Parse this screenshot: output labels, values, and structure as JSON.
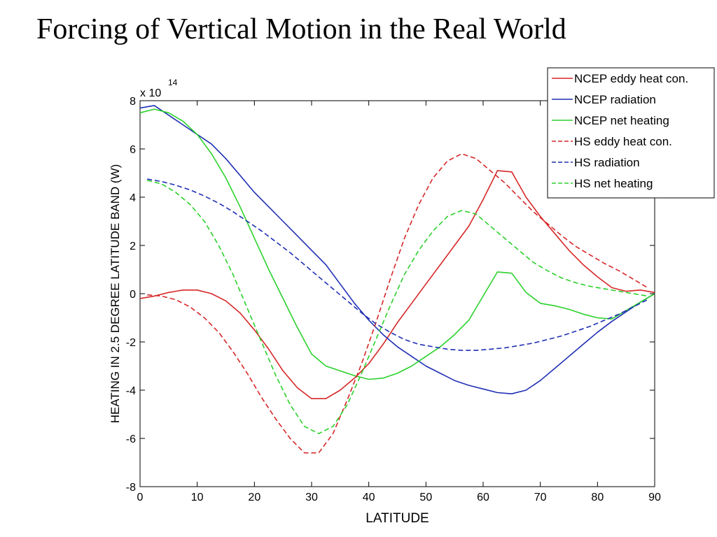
{
  "slide": {
    "title": "Forcing of Vertical Motion in the Real World"
  },
  "chart_data": {
    "type": "line",
    "xlabel": "LATITUDE",
    "ylabel": "HEATING IN 2.5 DEGREE LATITUDE BAND (W)",
    "exponent_label": {
      "base": "x 10",
      "power": "14"
    },
    "xlim": [
      0,
      90
    ],
    "ylim": [
      -8,
      8
    ],
    "x_ticks": [
      0,
      10,
      20,
      30,
      40,
      50,
      60,
      70,
      80,
      90
    ],
    "y_ticks": [
      -8,
      -6,
      -4,
      -2,
      0,
      2,
      4,
      6,
      8
    ],
    "grid": false,
    "legend_position": "top-right",
    "series": [
      {
        "name": "NCEP eddy heat con.",
        "color": "#d62728",
        "style": "solid",
        "points": [
          [
            0,
            -0.2
          ],
          [
            2.5,
            -0.1
          ],
          [
            5,
            0.05
          ],
          [
            7.5,
            0.15
          ],
          [
            10,
            0.15
          ],
          [
            12.5,
            0
          ],
          [
            15,
            -0.3
          ],
          [
            17.5,
            -0.8
          ],
          [
            20,
            -1.5
          ],
          [
            22.5,
            -2.3
          ],
          [
            25,
            -3.2
          ],
          [
            27.5,
            -3.9
          ],
          [
            30,
            -4.35
          ],
          [
            32.5,
            -4.35
          ],
          [
            35,
            -4.0
          ],
          [
            37.5,
            -3.5
          ],
          [
            40,
            -2.9
          ],
          [
            42.5,
            -2.1
          ],
          [
            45,
            -1.2
          ],
          [
            47.5,
            -0.4
          ],
          [
            50,
            0.4
          ],
          [
            52.5,
            1.2
          ],
          [
            55,
            2.0
          ],
          [
            57.5,
            2.8
          ],
          [
            60,
            3.9
          ],
          [
            62.5,
            5.1
          ],
          [
            65,
            5.05
          ],
          [
            67.5,
            4.0
          ],
          [
            70,
            3.2
          ],
          [
            72.5,
            2.5
          ],
          [
            75,
            1.8
          ],
          [
            77.5,
            1.2
          ],
          [
            80,
            0.7
          ],
          [
            82.5,
            0.25
          ],
          [
            85,
            0.1
          ],
          [
            87.5,
            0.15
          ],
          [
            90,
            0.05
          ]
        ]
      },
      {
        "name": "NCEP radiation",
        "color": "#1f2fb4",
        "style": "solid",
        "points": [
          [
            0,
            7.7
          ],
          [
            2.5,
            7.8
          ],
          [
            5,
            7.4
          ],
          [
            7.5,
            7.0
          ],
          [
            10,
            6.6
          ],
          [
            12.5,
            6.2
          ],
          [
            15,
            5.6
          ],
          [
            17.5,
            4.9
          ],
          [
            20,
            4.2
          ],
          [
            22.5,
            3.6
          ],
          [
            25,
            3.0
          ],
          [
            27.5,
            2.4
          ],
          [
            30,
            1.8
          ],
          [
            32.5,
            1.2
          ],
          [
            35,
            0.4
          ],
          [
            37.5,
            -0.4
          ],
          [
            40,
            -1.1
          ],
          [
            42.5,
            -1.7
          ],
          [
            45,
            -2.2
          ],
          [
            47.5,
            -2.6
          ],
          [
            50,
            -3.0
          ],
          [
            52.5,
            -3.3
          ],
          [
            55,
            -3.6
          ],
          [
            57.5,
            -3.8
          ],
          [
            60,
            -3.95
          ],
          [
            62.5,
            -4.1
          ],
          [
            65,
            -4.15
          ],
          [
            67.5,
            -4.0
          ],
          [
            70,
            -3.6
          ],
          [
            72.5,
            -3.1
          ],
          [
            75,
            -2.6
          ],
          [
            77.5,
            -2.1
          ],
          [
            80,
            -1.6
          ],
          [
            82.5,
            -1.15
          ],
          [
            85,
            -0.75
          ],
          [
            87.5,
            -0.35
          ],
          [
            90,
            0
          ]
        ]
      },
      {
        "name": "NCEP net heating",
        "color": "#2bd12b",
        "style": "solid",
        "points": [
          [
            0,
            7.5
          ],
          [
            2.5,
            7.65
          ],
          [
            5,
            7.5
          ],
          [
            7.5,
            7.15
          ],
          [
            10,
            6.6
          ],
          [
            12.5,
            5.8
          ],
          [
            15,
            4.8
          ],
          [
            17.5,
            3.6
          ],
          [
            20,
            2.3
          ],
          [
            22.5,
            1.0
          ],
          [
            25,
            -0.2
          ],
          [
            27.5,
            -1.4
          ],
          [
            30,
            -2.5
          ],
          [
            32.5,
            -3.0
          ],
          [
            35,
            -3.2
          ],
          [
            37.5,
            -3.4
          ],
          [
            40,
            -3.55
          ],
          [
            42.5,
            -3.5
          ],
          [
            45,
            -3.3
          ],
          [
            47.5,
            -3.0
          ],
          [
            50,
            -2.6
          ],
          [
            52.5,
            -2.2
          ],
          [
            55,
            -1.7
          ],
          [
            57.5,
            -1.1
          ],
          [
            60,
            -0.1
          ],
          [
            62.5,
            0.9
          ],
          [
            65,
            0.85
          ],
          [
            67.5,
            0.05
          ],
          [
            70,
            -0.4
          ],
          [
            72.5,
            -0.5
          ],
          [
            75,
            -0.65
          ],
          [
            77.5,
            -0.85
          ],
          [
            80,
            -1.0
          ],
          [
            82.5,
            -1.05
          ],
          [
            85,
            -0.7
          ],
          [
            87.5,
            -0.35
          ],
          [
            90,
            0
          ]
        ]
      },
      {
        "name": "HS eddy heat con.",
        "color": "#d62728",
        "style": "dashed",
        "points": [
          [
            1.25,
            -0.05
          ],
          [
            3.75,
            -0.1
          ],
          [
            6.25,
            -0.25
          ],
          [
            8.75,
            -0.55
          ],
          [
            11.25,
            -1.0
          ],
          [
            13.75,
            -1.6
          ],
          [
            16.25,
            -2.4
          ],
          [
            18.75,
            -3.3
          ],
          [
            21.25,
            -4.3
          ],
          [
            23.75,
            -5.2
          ],
          [
            26.25,
            -6.0
          ],
          [
            28.75,
            -6.6
          ],
          [
            31.25,
            -6.6
          ],
          [
            33.75,
            -5.8
          ],
          [
            36.25,
            -4.4
          ],
          [
            38.75,
            -2.9
          ],
          [
            41.25,
            -1.2
          ],
          [
            43.75,
            0.6
          ],
          [
            46.25,
            2.3
          ],
          [
            48.75,
            3.7
          ],
          [
            51.25,
            4.8
          ],
          [
            53.75,
            5.5
          ],
          [
            56.25,
            5.8
          ],
          [
            58.75,
            5.6
          ],
          [
            61.25,
            5.1
          ],
          [
            63.75,
            4.6
          ],
          [
            66.25,
            4.0
          ],
          [
            68.75,
            3.4
          ],
          [
            71.25,
            2.9
          ],
          [
            73.75,
            2.4
          ],
          [
            76.25,
            1.95
          ],
          [
            78.75,
            1.6
          ],
          [
            81.25,
            1.25
          ],
          [
            83.75,
            0.95
          ],
          [
            86.25,
            0.6
          ],
          [
            88.75,
            0.25
          ]
        ]
      },
      {
        "name": "HS radiation",
        "color": "#1f2fb4",
        "style": "dashed",
        "points": [
          [
            1.25,
            4.75
          ],
          [
            3.75,
            4.65
          ],
          [
            6.25,
            4.5
          ],
          [
            8.75,
            4.3
          ],
          [
            11.25,
            4.05
          ],
          [
            13.75,
            3.75
          ],
          [
            16.25,
            3.4
          ],
          [
            18.75,
            3.0
          ],
          [
            21.25,
            2.6
          ],
          [
            23.75,
            2.15
          ],
          [
            26.25,
            1.7
          ],
          [
            28.75,
            1.2
          ],
          [
            31.25,
            0.7
          ],
          [
            33.75,
            0.2
          ],
          [
            36.25,
            -0.3
          ],
          [
            38.75,
            -0.8
          ],
          [
            41.25,
            -1.25
          ],
          [
            43.75,
            -1.6
          ],
          [
            46.25,
            -1.9
          ],
          [
            48.75,
            -2.1
          ],
          [
            51.25,
            -2.2
          ],
          [
            53.75,
            -2.3
          ],
          [
            56.25,
            -2.35
          ],
          [
            58.75,
            -2.35
          ],
          [
            61.25,
            -2.3
          ],
          [
            63.75,
            -2.25
          ],
          [
            66.25,
            -2.15
          ],
          [
            68.75,
            -2.05
          ],
          [
            71.25,
            -1.9
          ],
          [
            73.75,
            -1.75
          ],
          [
            76.25,
            -1.55
          ],
          [
            78.75,
            -1.35
          ],
          [
            81.25,
            -1.1
          ],
          [
            83.75,
            -0.85
          ],
          [
            86.25,
            -0.55
          ],
          [
            88.75,
            -0.25
          ]
        ]
      },
      {
        "name": "HS net heating",
        "color": "#2bd12b",
        "style": "dashed",
        "points": [
          [
            1.25,
            4.7
          ],
          [
            3.75,
            4.55
          ],
          [
            6.25,
            4.2
          ],
          [
            8.75,
            3.7
          ],
          [
            11.25,
            3.0
          ],
          [
            13.75,
            2.0
          ],
          [
            16.25,
            0.8
          ],
          [
            18.75,
            -0.6
          ],
          [
            21.25,
            -2.0
          ],
          [
            23.75,
            -3.4
          ],
          [
            26.25,
            -4.6
          ],
          [
            28.75,
            -5.5
          ],
          [
            31.25,
            -5.8
          ],
          [
            33.75,
            -5.5
          ],
          [
            36.25,
            -4.6
          ],
          [
            38.75,
            -3.3
          ],
          [
            41.25,
            -1.9
          ],
          [
            43.75,
            -0.5
          ],
          [
            46.25,
            0.8
          ],
          [
            48.75,
            1.8
          ],
          [
            51.25,
            2.6
          ],
          [
            53.75,
            3.2
          ],
          [
            56.25,
            3.45
          ],
          [
            58.75,
            3.3
          ],
          [
            61.25,
            2.8
          ],
          [
            63.75,
            2.3
          ],
          [
            66.25,
            1.8
          ],
          [
            68.75,
            1.3
          ],
          [
            71.25,
            0.95
          ],
          [
            73.75,
            0.65
          ],
          [
            76.25,
            0.45
          ],
          [
            78.75,
            0.3
          ],
          [
            81.25,
            0.2
          ],
          [
            83.75,
            0.1
          ],
          [
            86.25,
            0.0
          ],
          [
            88.75,
            -0.1
          ]
        ]
      }
    ]
  }
}
